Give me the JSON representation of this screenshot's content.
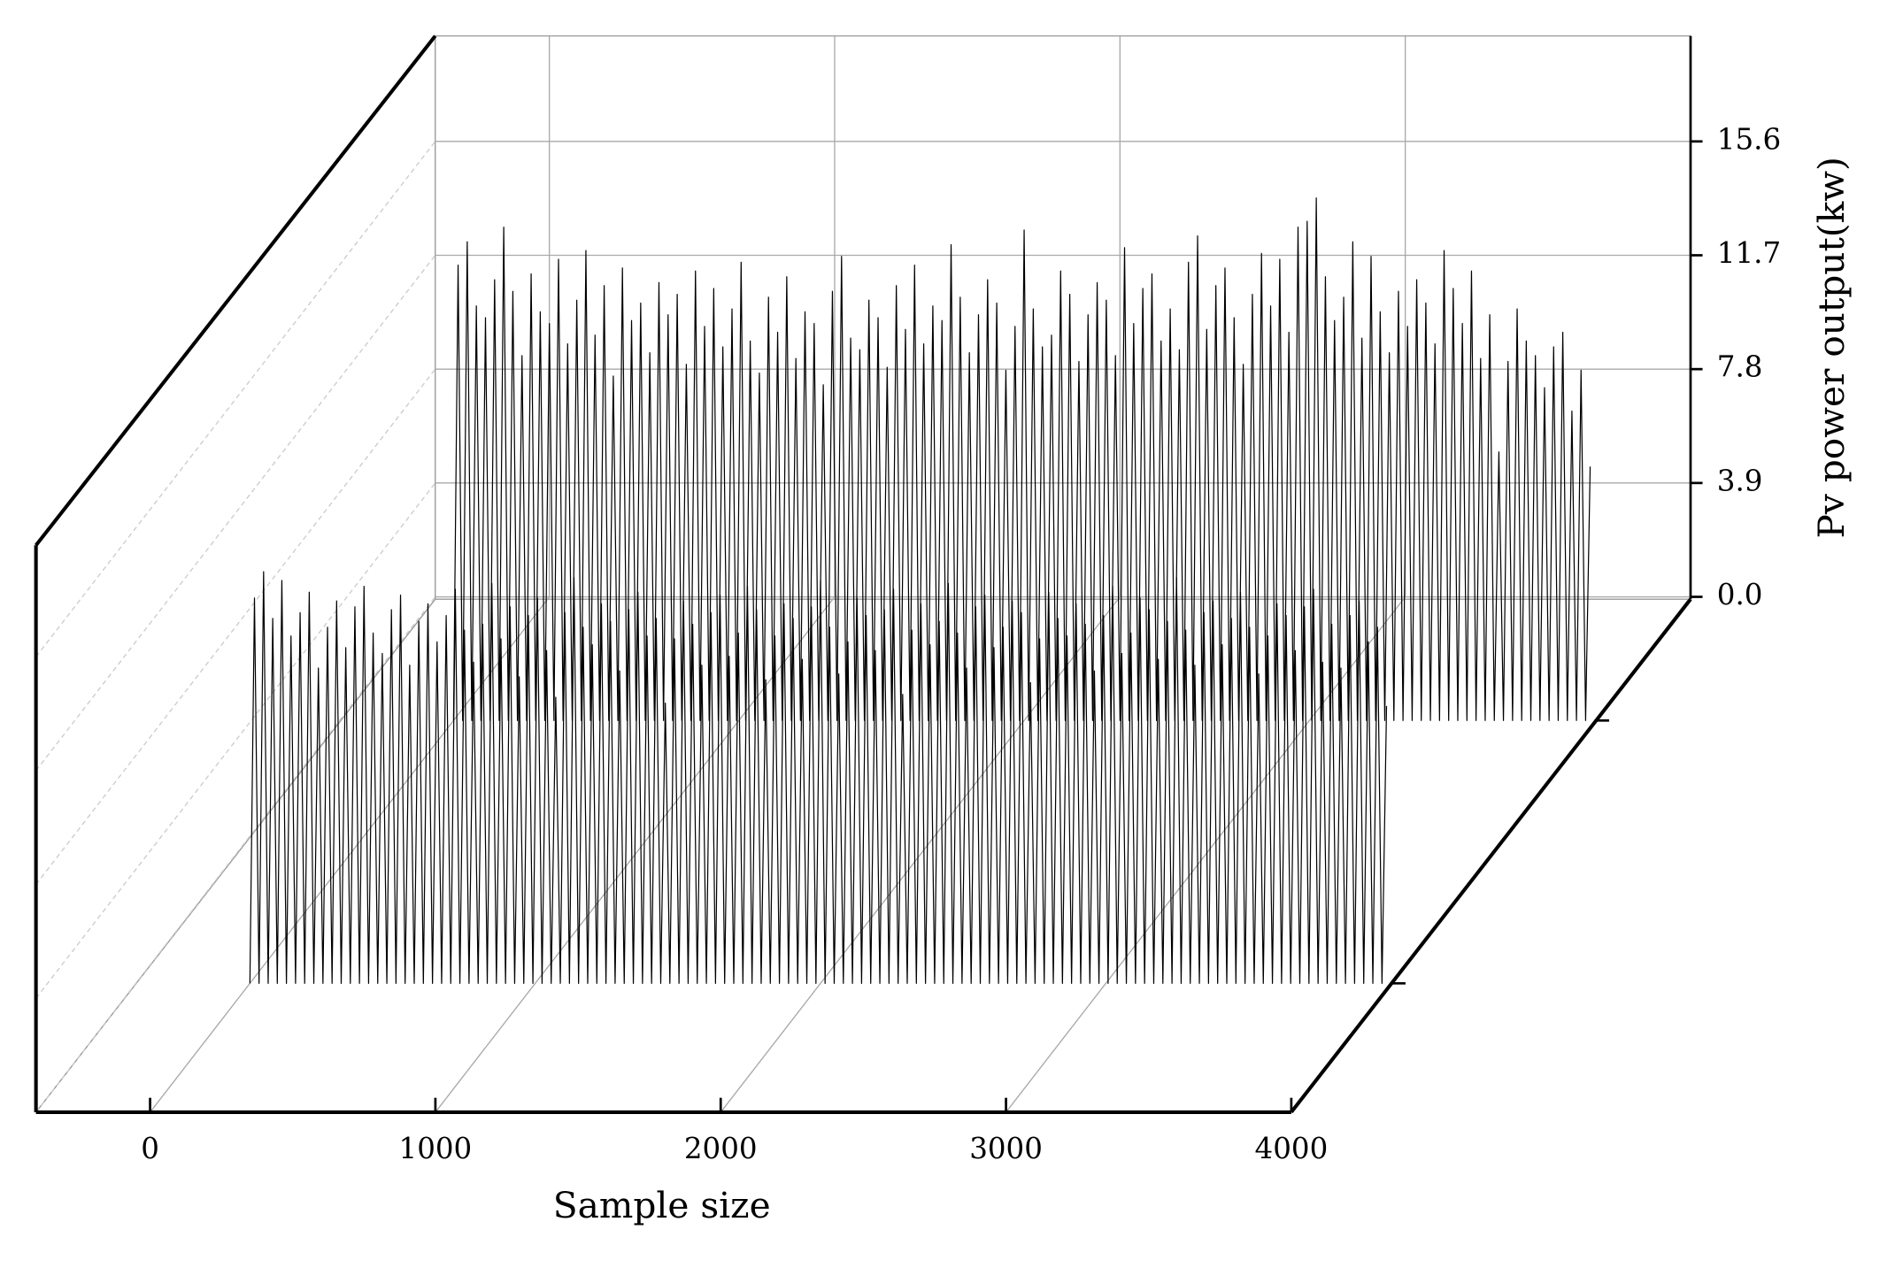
{
  "chart_data": {
    "type": "waterfall3d",
    "xlabel": "Sample size",
    "ylabel": "Pv power output(kw)",
    "xlim": [
      -400,
      4000
    ],
    "xticks": [
      0,
      1000,
      2000,
      3000,
      4000
    ],
    "ylim": [
      0,
      19.2
    ],
    "yticks": [
      {
        "value": 0,
        "label": "0.0"
      },
      3.9,
      7.8,
      11.7,
      15.6
    ],
    "grid": true,
    "x": [
      0,
      16,
      32,
      48,
      64,
      80,
      96,
      112,
      128,
      144,
      160,
      176,
      192,
      208,
      224,
      240,
      256,
      272,
      288,
      304,
      320,
      336,
      352,
      368,
      384,
      400,
      416,
      432,
      448,
      464,
      480,
      496,
      512,
      528,
      544,
      560,
      576,
      592,
      608,
      624,
      640,
      656,
      672,
      688,
      704,
      720,
      736,
      752,
      768,
      784,
      800,
      816,
      832,
      848,
      864,
      880,
      896,
      912,
      928,
      944,
      960,
      976,
      992,
      1008,
      1024,
      1040,
      1056,
      1072,
      1088,
      1104,
      1120,
      1136,
      1152,
      1168,
      1184,
      1200,
      1216,
      1232,
      1248,
      1264,
      1280,
      1296,
      1312,
      1328,
      1344,
      1360,
      1376,
      1392,
      1408,
      1424,
      1440,
      1456,
      1472,
      1488,
      1504,
      1520,
      1536,
      1552,
      1568,
      1584,
      1600,
      1616,
      1632,
      1648,
      1664,
      1680,
      1696,
      1712,
      1728,
      1744,
      1760,
      1776,
      1792,
      1808,
      1824,
      1840,
      1856,
      1872,
      1888,
      1904,
      1920,
      1936,
      1952,
      1968,
      1984,
      2000,
      2016,
      2032,
      2048,
      2064,
      2080,
      2096,
      2112,
      2128,
      2144,
      2160,
      2176,
      2192,
      2208,
      2224,
      2240,
      2256,
      2272,
      2288,
      2304,
      2320,
      2336,
      2352,
      2368,
      2384,
      2400,
      2416,
      2432,
      2448,
      2464,
      2480,
      2496,
      2512,
      2528,
      2544,
      2560,
      2576,
      2592,
      2608,
      2624,
      2640,
      2656,
      2672,
      2688,
      2704,
      2720,
      2736,
      2752,
      2768,
      2784,
      2800,
      2816,
      2832,
      2848,
      2864,
      2880,
      2896,
      2912,
      2928,
      2944,
      2960,
      2976,
      2992,
      3008,
      3024,
      3040,
      3056,
      3072,
      3088,
      3104,
      3120,
      3136,
      3152,
      3168,
      3184,
      3200,
      3216,
      3232,
      3248,
      3264,
      3280,
      3296,
      3312,
      3328,
      3344,
      3360,
      3376,
      3392,
      3408,
      3424,
      3440,
      3456,
      3472,
      3488,
      3504,
      3520,
      3536,
      3552,
      3568,
      3584,
      3600,
      3616,
      3632,
      3648,
      3664,
      3680,
      3696,
      3712,
      3728,
      3744,
      3760,
      3776,
      3792,
      3808,
      3824,
      3840,
      3856,
      3872,
      3888,
      3904,
      3920,
      3936,
      3952,
      3968,
      3984
    ],
    "series": [
      {
        "color": "#000000",
        "values": [
          0,
          15.6,
          0,
          16.4,
          0,
          14.2,
          0,
          13.8,
          0,
          15.1,
          0,
          16.9,
          0,
          14.7,
          0,
          12.5,
          0,
          15.3,
          0,
          14.0,
          0,
          13.6,
          0,
          15.8,
          0,
          12.9,
          0,
          14.4,
          0,
          16.1,
          0,
          13.2,
          0,
          14.9,
          0,
          11.8,
          0,
          15.5,
          0,
          13.7,
          0,
          14.3,
          0,
          12.6,
          0,
          15.0,
          0,
          13.9,
          0,
          14.6,
          0,
          12.2,
          0,
          15.4,
          0,
          13.5,
          0,
          14.8,
          0,
          12.8,
          0,
          14.1,
          0,
          15.7,
          0,
          13.0,
          0,
          11.9,
          0,
          14.5,
          0,
          13.3,
          0,
          15.2,
          0,
          12.4,
          0,
          14.0,
          0,
          13.6,
          0,
          11.5,
          0,
          14.7,
          0,
          15.9,
          0,
          13.1,
          0,
          12.7,
          0,
          14.4,
          0,
          13.8,
          0,
          12.1,
          0,
          14.9,
          0,
          13.4,
          0,
          15.6,
          0,
          12.9,
          0,
          14.2,
          0,
          13.7,
          0,
          16.3,
          0,
          14.5,
          0,
          12.6,
          0,
          13.9,
          0,
          15.1,
          0,
          14.3,
          0,
          12.0,
          0,
          13.5,
          0,
          16.8,
          0,
          14.1,
          0,
          12.8,
          0,
          13.2,
          0,
          15.4,
          0,
          14.6,
          0,
          12.3,
          0,
          13.9,
          0,
          15.0,
          0,
          14.4,
          0,
          12.5,
          0,
          16.2,
          0,
          13.6,
          0,
          14.8,
          0,
          15.3,
          0,
          13.0,
          0,
          14.1,
          0,
          12.7,
          0,
          15.7,
          0,
          16.6,
          0,
          13.4,
          0,
          14.9,
          0,
          15.5,
          0,
          13.8,
          0,
          12.2,
          0,
          14.6,
          0,
          16.0,
          0,
          14.2,
          0,
          15.8,
          0,
          13.3,
          0,
          16.9,
          0,
          17.1,
          0,
          17.9,
          0,
          15.2,
          0,
          13.7,
          0,
          14.5,
          0,
          16.4,
          0,
          13.1,
          0,
          15.9,
          0,
          14.0,
          0,
          12.6,
          0,
          14.7,
          0,
          13.5,
          0,
          15.1,
          0,
          14.3,
          0,
          12.9,
          0,
          16.1,
          0,
          14.8,
          0,
          13.6,
          0,
          15.4,
          0,
          12.4,
          0,
          13.9,
          0,
          9.2,
          0,
          12.3,
          0,
          14.1,
          0,
          13.0,
          0,
          12.5,
          0,
          11.4,
          0,
          12.8,
          0,
          13.3,
          0,
          10.6,
          0,
          12.0,
          0,
          8.7
        ]
      },
      {
        "color": "#000000",
        "values": [
          0,
          13.2,
          0,
          14.1,
          0,
          12.5,
          0,
          13.8,
          0,
          11.9,
          0,
          12.7,
          0,
          13.4,
          0,
          10.8,
          0,
          12.2,
          0,
          13.1,
          0,
          11.5,
          0,
          12.9,
          0,
          13.6,
          0,
          12.0,
          0,
          11.3,
          0,
          12.8,
          0,
          13.3,
          0,
          10.9,
          0,
          12.4,
          0,
          13.0,
          0,
          11.7,
          0,
          12.6,
          0,
          13.5,
          0,
          12.1,
          0,
          11.0,
          0,
          12.3,
          0,
          13.7,
          0,
          11.8,
          0,
          12.9,
          0,
          10.5,
          0,
          12.6,
          0,
          13.2,
          0,
          11.4,
          0,
          9.8,
          0,
          12.7,
          0,
          13.9,
          0,
          12.2,
          0,
          11.6,
          0,
          13.0,
          0,
          12.4,
          0,
          10.7,
          0,
          12.8,
          0,
          13.4,
          0,
          11.9,
          0,
          12.5,
          0,
          9.6,
          0,
          11.8,
          0,
          13.1,
          0,
          12.3,
          0,
          10.9,
          0,
          12.7,
          0,
          13.3,
          0,
          11.2,
          0,
          12.0,
          0,
          13.6,
          0,
          12.8,
          0,
          10.4,
          0,
          11.9,
          0,
          13.0,
          0,
          12.5,
          0,
          11.1,
          0,
          12.9,
          0,
          13.8,
          0,
          12.2,
          0,
          10.6,
          0,
          11.7,
          0,
          13.2,
          0,
          12.6,
          0,
          11.4,
          0,
          12.8,
          0,
          13.5,
          0,
          9.9,
          0,
          12.1,
          0,
          13.0,
          0,
          11.6,
          0,
          12.4,
          0,
          13.7,
          0,
          12.0,
          0,
          10.8,
          0,
          12.9,
          0,
          13.3,
          0,
          11.5,
          0,
          12.2,
          0,
          13.1,
          0,
          12.7,
          0,
          10.3,
          0,
          11.8,
          0,
          13.4,
          0,
          12.5,
          0,
          11.9,
          0,
          13.0,
          0,
          12.3,
          0,
          10.7,
          0,
          12.6,
          0,
          13.6,
          0,
          11.3,
          0,
          12.0,
          0,
          13.2,
          0,
          12.8,
          0,
          11.1,
          0,
          12.4,
          0,
          13.9,
          0,
          12.1,
          0,
          10.9,
          0,
          12.7,
          0,
          13.1,
          0,
          11.6,
          0,
          12.5,
          0,
          13.4,
          0,
          12.2,
          0,
          10.6,
          0,
          11.9,
          0,
          13.0,
          0,
          12.6,
          0,
          11.4,
          0,
          12.9,
          0,
          13.5,
          0,
          11.0,
          0,
          12.3,
          0,
          10.8,
          0,
          12.6,
          0,
          13.1,
          0,
          11.7,
          0,
          12.2,
          0,
          9.5
        ]
      }
    ]
  }
}
